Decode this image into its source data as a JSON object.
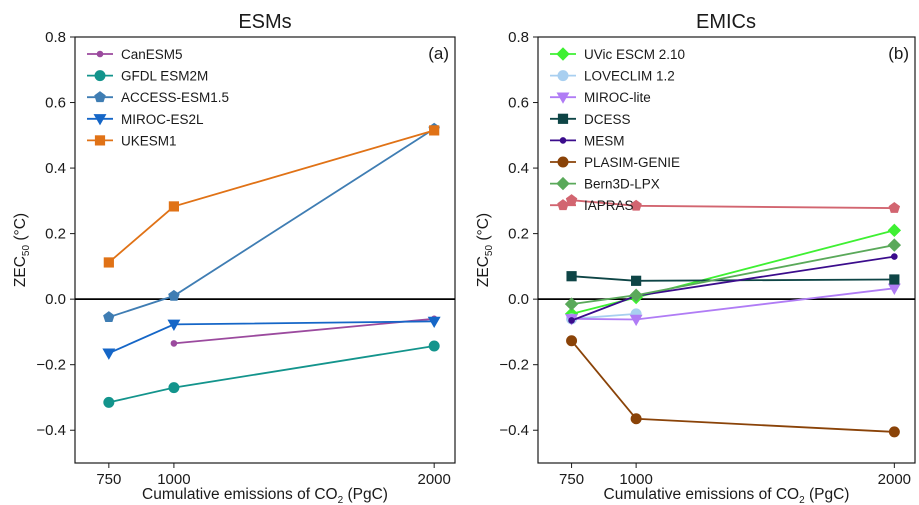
{
  "chart_data": [
    {
      "type": "line",
      "title": "ESMs",
      "panel_label": "(a)",
      "xlabel_main": "Cumulative emissions of CO",
      "xlabel_sub": "2",
      "xlabel_unit": "(PgC)",
      "ylabel_main": "ZEC",
      "ylabel_sub": "50",
      "ylabel_unit": "(°C)",
      "xlim": [
        620,
        2080
      ],
      "ylim": [
        -0.5,
        0.8
      ],
      "x_ticks": [
        750,
        1000,
        2000
      ],
      "y_ticks": [
        -0.4,
        -0.2,
        0.0,
        0.2,
        0.4,
        0.6,
        0.8
      ],
      "y_tick_labels": [
        "−0.4",
        "−0.2",
        "0.0",
        "0.2",
        "0.4",
        "0.6",
        "0.8"
      ],
      "zero_line": true,
      "grid": false,
      "legend_position": "top-left",
      "series": [
        {
          "name": "CanESM5",
          "color": "#9b4a9e",
          "marker": "dot",
          "x": [
            1000,
            2000
          ],
          "y": [
            -0.135,
            -0.06
          ]
        },
        {
          "name": "GFDL ESM2M",
          "color": "#13948c",
          "marker": "circle",
          "x": [
            750,
            1000,
            2000
          ],
          "y": [
            -0.315,
            -0.27,
            -0.143
          ]
        },
        {
          "name": "ACCESS-ESM1.5",
          "color": "#3f7db3",
          "marker": "pentagon",
          "x": [
            750,
            1000,
            2000
          ],
          "y": [
            -0.055,
            0.01,
            0.52
          ]
        },
        {
          "name": "MIROC-ES2L",
          "color": "#1566c7",
          "marker": "triangle-down",
          "x": [
            750,
            1000,
            2000
          ],
          "y": [
            -0.165,
            -0.077,
            -0.068
          ]
        },
        {
          "name": "UKESM1",
          "color": "#e07216",
          "marker": "square",
          "x": [
            750,
            1000,
            2000
          ],
          "y": [
            0.112,
            0.283,
            0.515
          ]
        }
      ]
    },
    {
      "type": "line",
      "title": "EMICs",
      "panel_label": "(b)",
      "xlabel_main": "Cumulative emissions of CO",
      "xlabel_sub": "2",
      "xlabel_unit": "(PgC)",
      "ylabel_main": "ZEC",
      "ylabel_sub": "50",
      "ylabel_unit": "(°C)",
      "xlim": [
        620,
        2080
      ],
      "ylim": [
        -0.5,
        0.8
      ],
      "x_ticks": [
        750,
        1000,
        2000
      ],
      "y_ticks": [
        -0.4,
        -0.2,
        0.0,
        0.2,
        0.4,
        0.6,
        0.8
      ],
      "y_tick_labels": [
        "−0.4",
        "−0.2",
        "0.0",
        "0.2",
        "0.4",
        "0.6",
        "0.8"
      ],
      "zero_line": true,
      "grid": false,
      "legend_position": "top-left",
      "series": [
        {
          "name": "UVic ESCM 2.10",
          "color": "#3ef032",
          "marker": "diamond",
          "x": [
            750,
            1000,
            2000
          ],
          "y": [
            -0.045,
            0.005,
            0.21
          ]
        },
        {
          "name": "LOVECLIM 1.2",
          "color": "#a8cff0",
          "marker": "circle",
          "x": [
            750,
            1000
          ],
          "y": [
            -0.06,
            -0.045
          ]
        },
        {
          "name": "MIROC-lite",
          "color": "#b07cf5",
          "marker": "triangle-down",
          "x": [
            750,
            1000,
            2000
          ],
          "y": [
            -0.06,
            -0.062,
            0.033
          ]
        },
        {
          "name": "DCESS",
          "color": "#0e4546",
          "marker": "square",
          "x": [
            750,
            1000,
            2000
          ],
          "y": [
            0.07,
            0.056,
            0.06
          ]
        },
        {
          "name": "MESM",
          "color": "#3b0c8c",
          "marker": "dot",
          "x": [
            750,
            1000,
            2000
          ],
          "y": [
            -0.065,
            0.01,
            0.13
          ]
        },
        {
          "name": "PLASIM-GENIE",
          "color": "#8a4308",
          "marker": "circle",
          "x": [
            750,
            1000,
            2000
          ],
          "y": [
            -0.127,
            -0.365,
            -0.405
          ]
        },
        {
          "name": "Bern3D-LPX",
          "color": "#5aa95a",
          "marker": "diamond",
          "x": [
            750,
            1000,
            2000
          ],
          "y": [
            -0.015,
            0.012,
            0.165
          ]
        },
        {
          "name": "IAPRAS",
          "color": "#d26570",
          "marker": "pentagon",
          "x": [
            750,
            1000,
            2000
          ],
          "y": [
            0.302,
            0.285,
            0.278
          ]
        }
      ]
    }
  ]
}
